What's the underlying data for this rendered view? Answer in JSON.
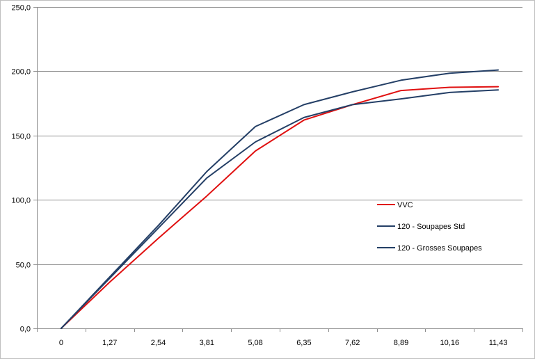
{
  "chart_data": {
    "type": "line",
    "title": "",
    "xlabel": "",
    "ylabel": "",
    "x": [
      "0",
      "1,27",
      "2,54",
      "3,81",
      "5,08",
      "6,35",
      "7,62",
      "8,89",
      "10,16",
      "11,43"
    ],
    "ylim": [
      0,
      250
    ],
    "yticks": [
      "0,0",
      "50,0",
      "100,0",
      "150,0",
      "200,0",
      "250,0"
    ],
    "grid": "horizontal",
    "legend": "right",
    "series": [
      {
        "name": "VVC",
        "color": "#e01010",
        "values": [
          0,
          36,
          70,
          103,
          138,
          162,
          174,
          185,
          187.5,
          188
        ]
      },
      {
        "name": "120 - Soupapes Std",
        "color": "#243f66",
        "values": [
          0,
          40,
          80,
          122,
          157,
          174,
          184,
          193,
          198.5,
          201
        ]
      },
      {
        "name": "120 - Grosses Soupapes",
        "color": "#243f66",
        "values": [
          0,
          39,
          78,
          117,
          145,
          164,
          174,
          178.5,
          183.5,
          185.5
        ]
      }
    ]
  }
}
